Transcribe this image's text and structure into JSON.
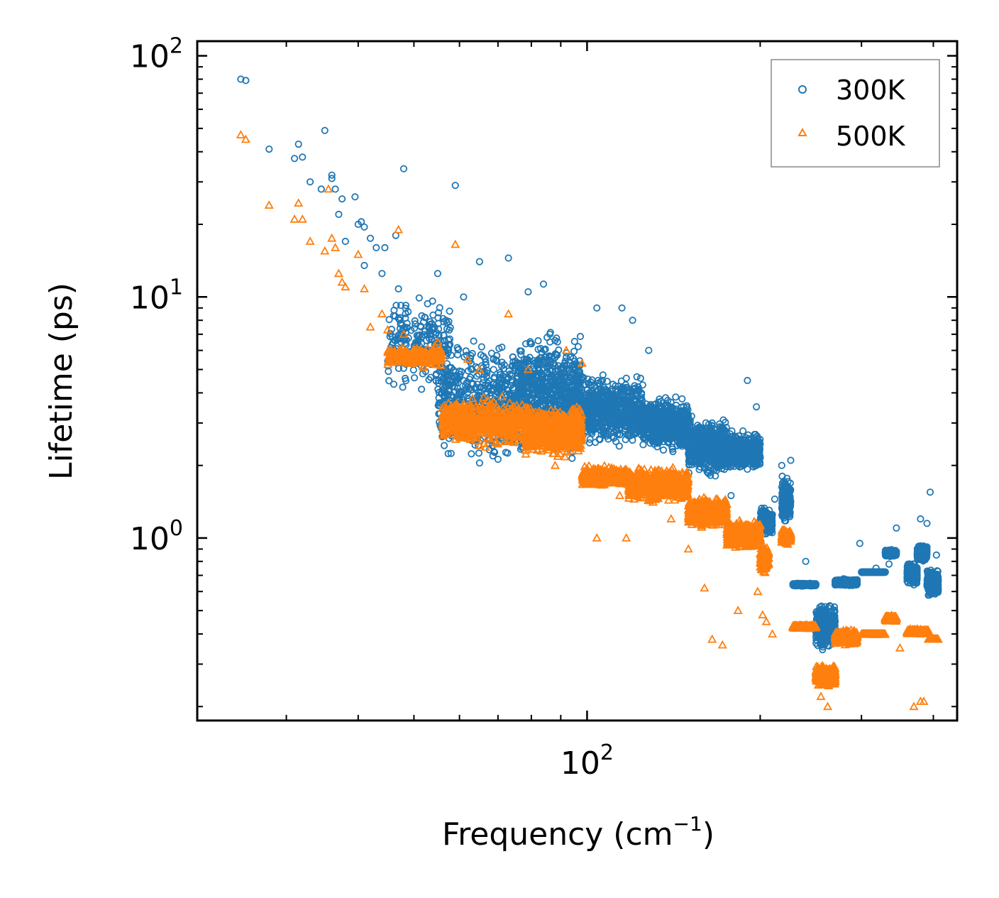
{
  "chart_data": {
    "type": "scatter",
    "xscale": "log",
    "yscale": "log",
    "xlabel": "Frequency (cm",
    "xlabel_exponent": "−1",
    "xlabel_close": ")",
    "ylabel": "Lifetime (ps)",
    "xlim": [
      21,
      440
    ],
    "ylim": [
      0.175,
      115
    ],
    "xticks": [
      {
        "base": "10",
        "exp": "2",
        "value": 100
      }
    ],
    "yticks": [
      {
        "base": "10",
        "exp": "0",
        "value": 1
      },
      {
        "base": "10",
        "exp": "1",
        "value": 10
      },
      {
        "base": "10",
        "exp": "2",
        "value": 100
      }
    ],
    "legend": {
      "position": "top-right",
      "entries": [
        "300K",
        "500K"
      ]
    },
    "series": [
      {
        "name": "300K",
        "label": "300K",
        "color": "#1f77b4",
        "marker": "circle",
        "anchors": [
          [
            25.0,
            80.0
          ],
          [
            25.5,
            79.0
          ],
          [
            28.0,
            41.0
          ],
          [
            31.0,
            37.5
          ],
          [
            31.5,
            43.0
          ],
          [
            32.0,
            38.0
          ],
          [
            33.0,
            30.0
          ],
          [
            34.5,
            28.0
          ],
          [
            35.0,
            49.0
          ],
          [
            36.0,
            32.0
          ],
          [
            36.0,
            31.0
          ],
          [
            36.5,
            28.0
          ],
          [
            37.0,
            22.0
          ],
          [
            37.5,
            25.5
          ],
          [
            38.0,
            17.0
          ],
          [
            39.5,
            26.0
          ],
          [
            40.0,
            20.0
          ],
          [
            40.5,
            20.5
          ],
          [
            41.0,
            19.5
          ],
          [
            41.0,
            13.5
          ],
          [
            42.0,
            17.5
          ],
          [
            43.0,
            16.0
          ],
          [
            44.0,
            12.5
          ],
          [
            44.5,
            16.0
          ],
          [
            46.5,
            18.0
          ],
          [
            47.0,
            10.8
          ],
          [
            48.0,
            34.0
          ],
          [
            55.0,
            12.5
          ],
          [
            59.0,
            29.0
          ],
          [
            61.0,
            10.0
          ],
          [
            65.0,
            14.0
          ],
          [
            73.0,
            14.5
          ],
          [
            79.0,
            10.5
          ],
          [
            84.0,
            11.3
          ],
          [
            104.0,
            9.0
          ],
          [
            115.0,
            9.0
          ],
          [
            120.0,
            8.0
          ],
          [
            128.0,
            6.0
          ],
          [
            135.0,
            3.5
          ],
          [
            140.0,
            3.5
          ],
          [
            152.0,
            3.2
          ],
          [
            165.0,
            3.0
          ],
          [
            178.0,
            1.5
          ],
          [
            183.0,
            2.0
          ],
          [
            190.0,
            4.5
          ],
          [
            197.0,
            3.5
          ],
          [
            202.0,
            0.9
          ],
          [
            205.0,
            0.75
          ],
          [
            212.0,
            1.45
          ],
          [
            218.0,
            2.0
          ],
          [
            226.0,
            2.1
          ],
          [
            240.0,
            0.8
          ],
          [
            258.0,
            0.38
          ],
          [
            275.0,
            0.65
          ],
          [
            298.0,
            0.95
          ],
          [
            318.0,
            0.75
          ],
          [
            335.0,
            0.78
          ],
          [
            345.0,
            1.1
          ],
          [
            368.0,
            0.75
          ],
          [
            380.0,
            1.2
          ],
          [
            390.0,
            1.15
          ],
          [
            395.0,
            1.55
          ],
          [
            405.0,
            0.85
          ]
        ],
        "bands": [
          [
            45,
            58,
            0.58,
            11.0,
            220
          ],
          [
            55,
            75,
            0.27,
            7.2,
            500
          ],
          [
            75,
            98,
            0.29,
            7.8,
            780
          ],
          [
            98,
            125,
            0.36,
            5.0,
            620
          ],
          [
            125,
            150,
            0.34,
            4.0,
            640
          ],
          [
            150,
            175,
            0.25,
            3.2,
            640
          ],
          [
            175,
            200,
            0.27,
            2.8,
            560
          ],
          [
            200,
            210,
            0.0,
            1.4,
            180
          ],
          [
            218,
            226,
            0.05,
            1.85,
            220
          ],
          [
            228,
            250,
            -0.2,
            0.65,
            480
          ],
          [
            250,
            270,
            -0.47,
            0.55,
            460
          ],
          [
            270,
            295,
            -0.2,
            0.68,
            460
          ],
          [
            300,
            330,
            -0.14,
            0.72,
            460
          ],
          [
            330,
            345,
            -0.08,
            0.9,
            320
          ],
          [
            360,
            375,
            -0.2,
            0.8,
            260
          ],
          [
            375,
            390,
            -0.1,
            0.95,
            300
          ],
          [
            390,
            408,
            -0.25,
            0.75,
            300
          ]
        ]
      },
      {
        "name": "500K",
        "label": "500K",
        "color": "#ff7f0e",
        "marker": "triangle",
        "anchors": [
          [
            25.0,
            47.0
          ],
          [
            25.5,
            45.0
          ],
          [
            28.0,
            24.0
          ],
          [
            31.0,
            21.0
          ],
          [
            31.5,
            24.5
          ],
          [
            32.0,
            21.0
          ],
          [
            33.0,
            17.0
          ],
          [
            35.0,
            15.5
          ],
          [
            35.5,
            28.0
          ],
          [
            36.0,
            17.5
          ],
          [
            36.5,
            16.0
          ],
          [
            37.0,
            12.5
          ],
          [
            37.5,
            11.5
          ],
          [
            38.0,
            11.0
          ],
          [
            40.0,
            15.0
          ],
          [
            41.0,
            10.8
          ],
          [
            42.0,
            7.5
          ],
          [
            44.0,
            8.5
          ],
          [
            45.0,
            7.3
          ],
          [
            47.0,
            19.0
          ],
          [
            48.0,
            7.0
          ],
          [
            49.0,
            5.3
          ],
          [
            52.0,
            5.8
          ],
          [
            55.0,
            6.5
          ],
          [
            59.0,
            16.5
          ],
          [
            62.0,
            5.5
          ],
          [
            65.0,
            5.0
          ],
          [
            73.0,
            8.5
          ],
          [
            79.0,
            5.0
          ],
          [
            88.0,
            2.0
          ],
          [
            92.0,
            6.0
          ],
          [
            98.0,
            5.3
          ],
          [
            104.0,
            1.0
          ],
          [
            114.0,
            1.5
          ],
          [
            117.0,
            1.0
          ],
          [
            140.0,
            1.2
          ],
          [
            150.0,
            0.9
          ],
          [
            160.0,
            0.62
          ],
          [
            165.0,
            0.38
          ],
          [
            172.0,
            0.36
          ],
          [
            183.0,
            0.5
          ],
          [
            190.0,
            1.0
          ],
          [
            198.0,
            0.6
          ],
          [
            202.0,
            0.48
          ],
          [
            205.0,
            0.45
          ],
          [
            210.0,
            0.4
          ],
          [
            255.0,
            0.22
          ],
          [
            262.0,
            0.2
          ],
          [
            300.0,
            0.4
          ],
          [
            350.0,
            0.35
          ],
          [
            370.0,
            0.2
          ],
          [
            380.0,
            0.21
          ],
          [
            385.0,
            0.21
          ]
        ],
        "bands": [
          [
            45,
            56,
            0.7,
            6.4,
            220
          ],
          [
            56,
            78,
            0.36,
            4.0,
            520
          ],
          [
            78,
            98,
            0.33,
            3.6,
            800
          ],
          [
            98,
            118,
            0.21,
            2.0,
            600
          ],
          [
            118,
            150,
            0.14,
            2.0,
            700
          ],
          [
            150,
            175,
            0.04,
            1.5,
            680
          ],
          [
            175,
            200,
            -0.05,
            1.2,
            560
          ],
          [
            200,
            207,
            -0.02,
            0.7,
            160
          ],
          [
            218,
            226,
            -0.03,
            1.1,
            200
          ],
          [
            228,
            250,
            -0.36,
            0.42,
            480
          ],
          [
            250,
            270,
            -0.62,
            0.3,
            460
          ],
          [
            270,
            295,
            -0.45,
            0.42,
            460
          ],
          [
            300,
            330,
            -0.4,
            0.4,
            460
          ],
          [
            330,
            345,
            -0.32,
            0.45,
            280
          ],
          [
            360,
            392,
            -0.4,
            0.42,
            500
          ],
          [
            392,
            408,
            -0.42,
            0.38,
            260
          ]
        ]
      }
    ]
  }
}
